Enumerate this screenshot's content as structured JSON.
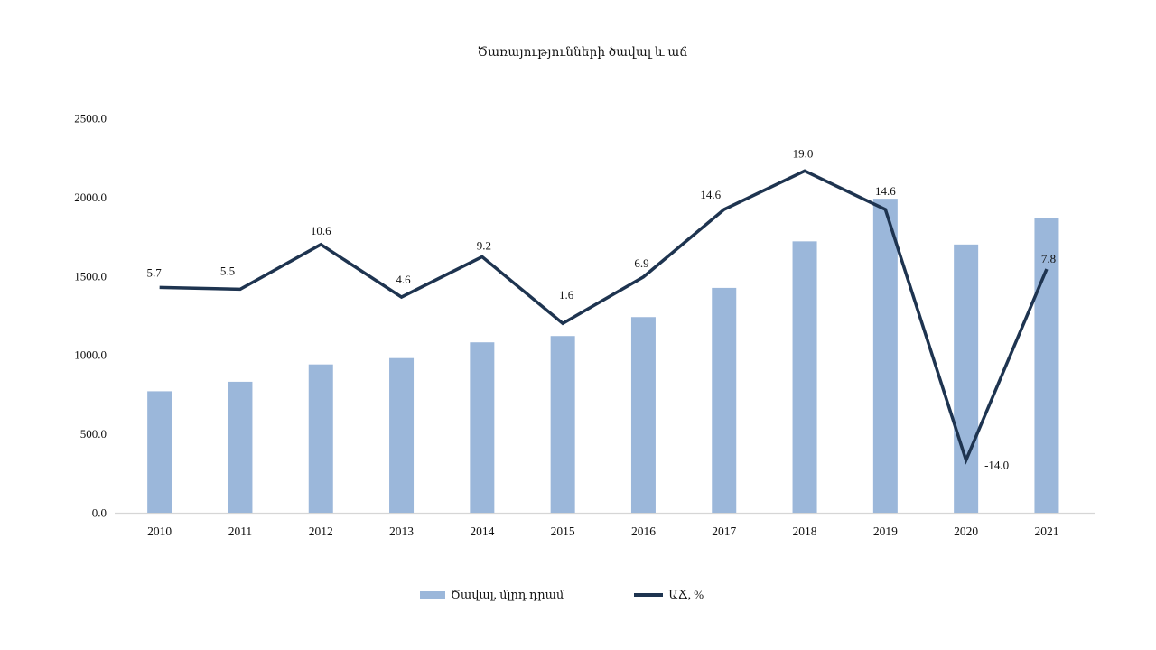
{
  "title": "Ծառայությունների ծավալ և աճ",
  "colors": {
    "bar": "#9BB7DA",
    "line": "#1E3450",
    "axis_line": "#D6D6D6",
    "text": "#111111",
    "background": "#FFFFFF"
  },
  "legend": [
    {
      "label": "Ծավալ, մլրդ դրամ",
      "type": "bar"
    },
    {
      "label": "ԱՃ, %",
      "type": "line"
    }
  ],
  "chart_data": {
    "type": "bar",
    "subtype": "combo-bar-line",
    "title": "Ծառայությունների ծավալ և աճ",
    "categories": [
      "2010",
      "2011",
      "2012",
      "2013",
      "2014",
      "2015",
      "2016",
      "2017",
      "2018",
      "2019",
      "2020",
      "2021"
    ],
    "series": [
      {
        "name": "Ծավալ, մլրդ դրամ",
        "type": "bar",
        "axis": "primary",
        "values": [
          770,
          830,
          940,
          980,
          1080,
          1120,
          1240,
          1425,
          1720,
          1990,
          1700,
          1870
        ]
      },
      {
        "name": "ԱՃ, %",
        "type": "line",
        "axis": "secondary",
        "values": [
          5.7,
          5.5,
          10.6,
          4.6,
          9.2,
          1.6,
          6.9,
          14.6,
          19.0,
          14.6,
          -14.0,
          7.8
        ],
        "data_labels": [
          "5.7",
          "5.5",
          "10.6",
          "4.6",
          "9.2",
          "1.6",
          "6.9",
          "14.6",
          "19.0",
          "14.6",
          "-14.0",
          "7.8"
        ]
      }
    ],
    "y_axis_primary": {
      "ticks": [
        "0.0",
        "500.0",
        "1000.0",
        "1500.0",
        "2000.0",
        "2500.0"
      ],
      "min": 0,
      "max": 2500,
      "label": ""
    },
    "y_axis_secondary": {
      "visible": false,
      "min": -20,
      "max": 25
    },
    "xlabel": "",
    "ylabel": "",
    "grid": false,
    "legend_position": "bottom"
  }
}
